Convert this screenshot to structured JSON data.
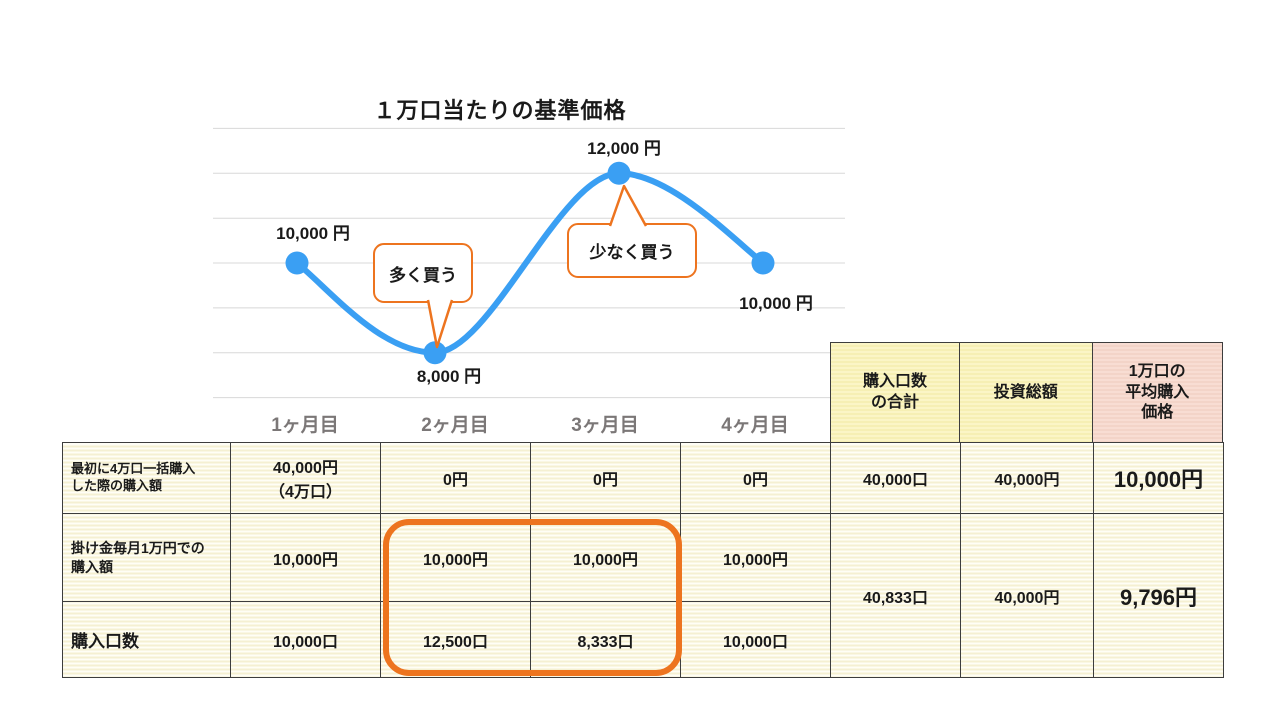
{
  "chart_data": {
    "type": "line",
    "title": "１万口当たりの基準価格",
    "x": [
      "1ヶ月目",
      "2ヶ月目",
      "3ヶ月目",
      "4ヶ月目"
    ],
    "values": [
      10000,
      8000,
      12000,
      10000
    ],
    "point_labels": [
      "10,000 円",
      "8,000 円",
      "12,000 円",
      "10,000 円"
    ],
    "ylim": [
      7000,
      13000
    ],
    "grid": true,
    "legend": false,
    "annotations": [
      {
        "text": "多く買う",
        "target": "2ヶ月目"
      },
      {
        "text": "少なく買う",
        "target": "3ヶ月目"
      }
    ]
  },
  "table": {
    "summary_headers": {
      "units_total": "購入口数\nの合計",
      "invest_total": "投資総額",
      "avg_price": "1万口の\n平均購入\n価格"
    },
    "rows": [
      {
        "label": "最初に4万口一括購入\nした際の購入額",
        "values": [
          "40,000円\n（4万口）",
          "0円",
          "0円",
          "0円"
        ],
        "units_total": "40,000口",
        "invest_total": "40,000円",
        "avg_price": "10,000円"
      },
      {
        "label": "掛け金毎月1万円での\n購入額",
        "values": [
          "10,000円",
          "10,000円",
          "10,000円",
          "10,000円"
        ]
      },
      {
        "label": "購入口数",
        "values": [
          "10,000口",
          "12,500口",
          "8,333口",
          "10,000口"
        ]
      }
    ],
    "merged_summary": {
      "units_total": "40,833口",
      "invest_total": "40,000円",
      "avg_price": "9,796円"
    }
  },
  "colors": {
    "line": "#3A9FF3",
    "accent_orange": "#ED741F",
    "grid": "#D8D8D8",
    "month_label": "#7B7777",
    "header_yellow": "#FBF5C6",
    "header_pink": "#F8DDD3",
    "cell_background": "#FFFEF6",
    "table_border": "#3D3D3D"
  }
}
